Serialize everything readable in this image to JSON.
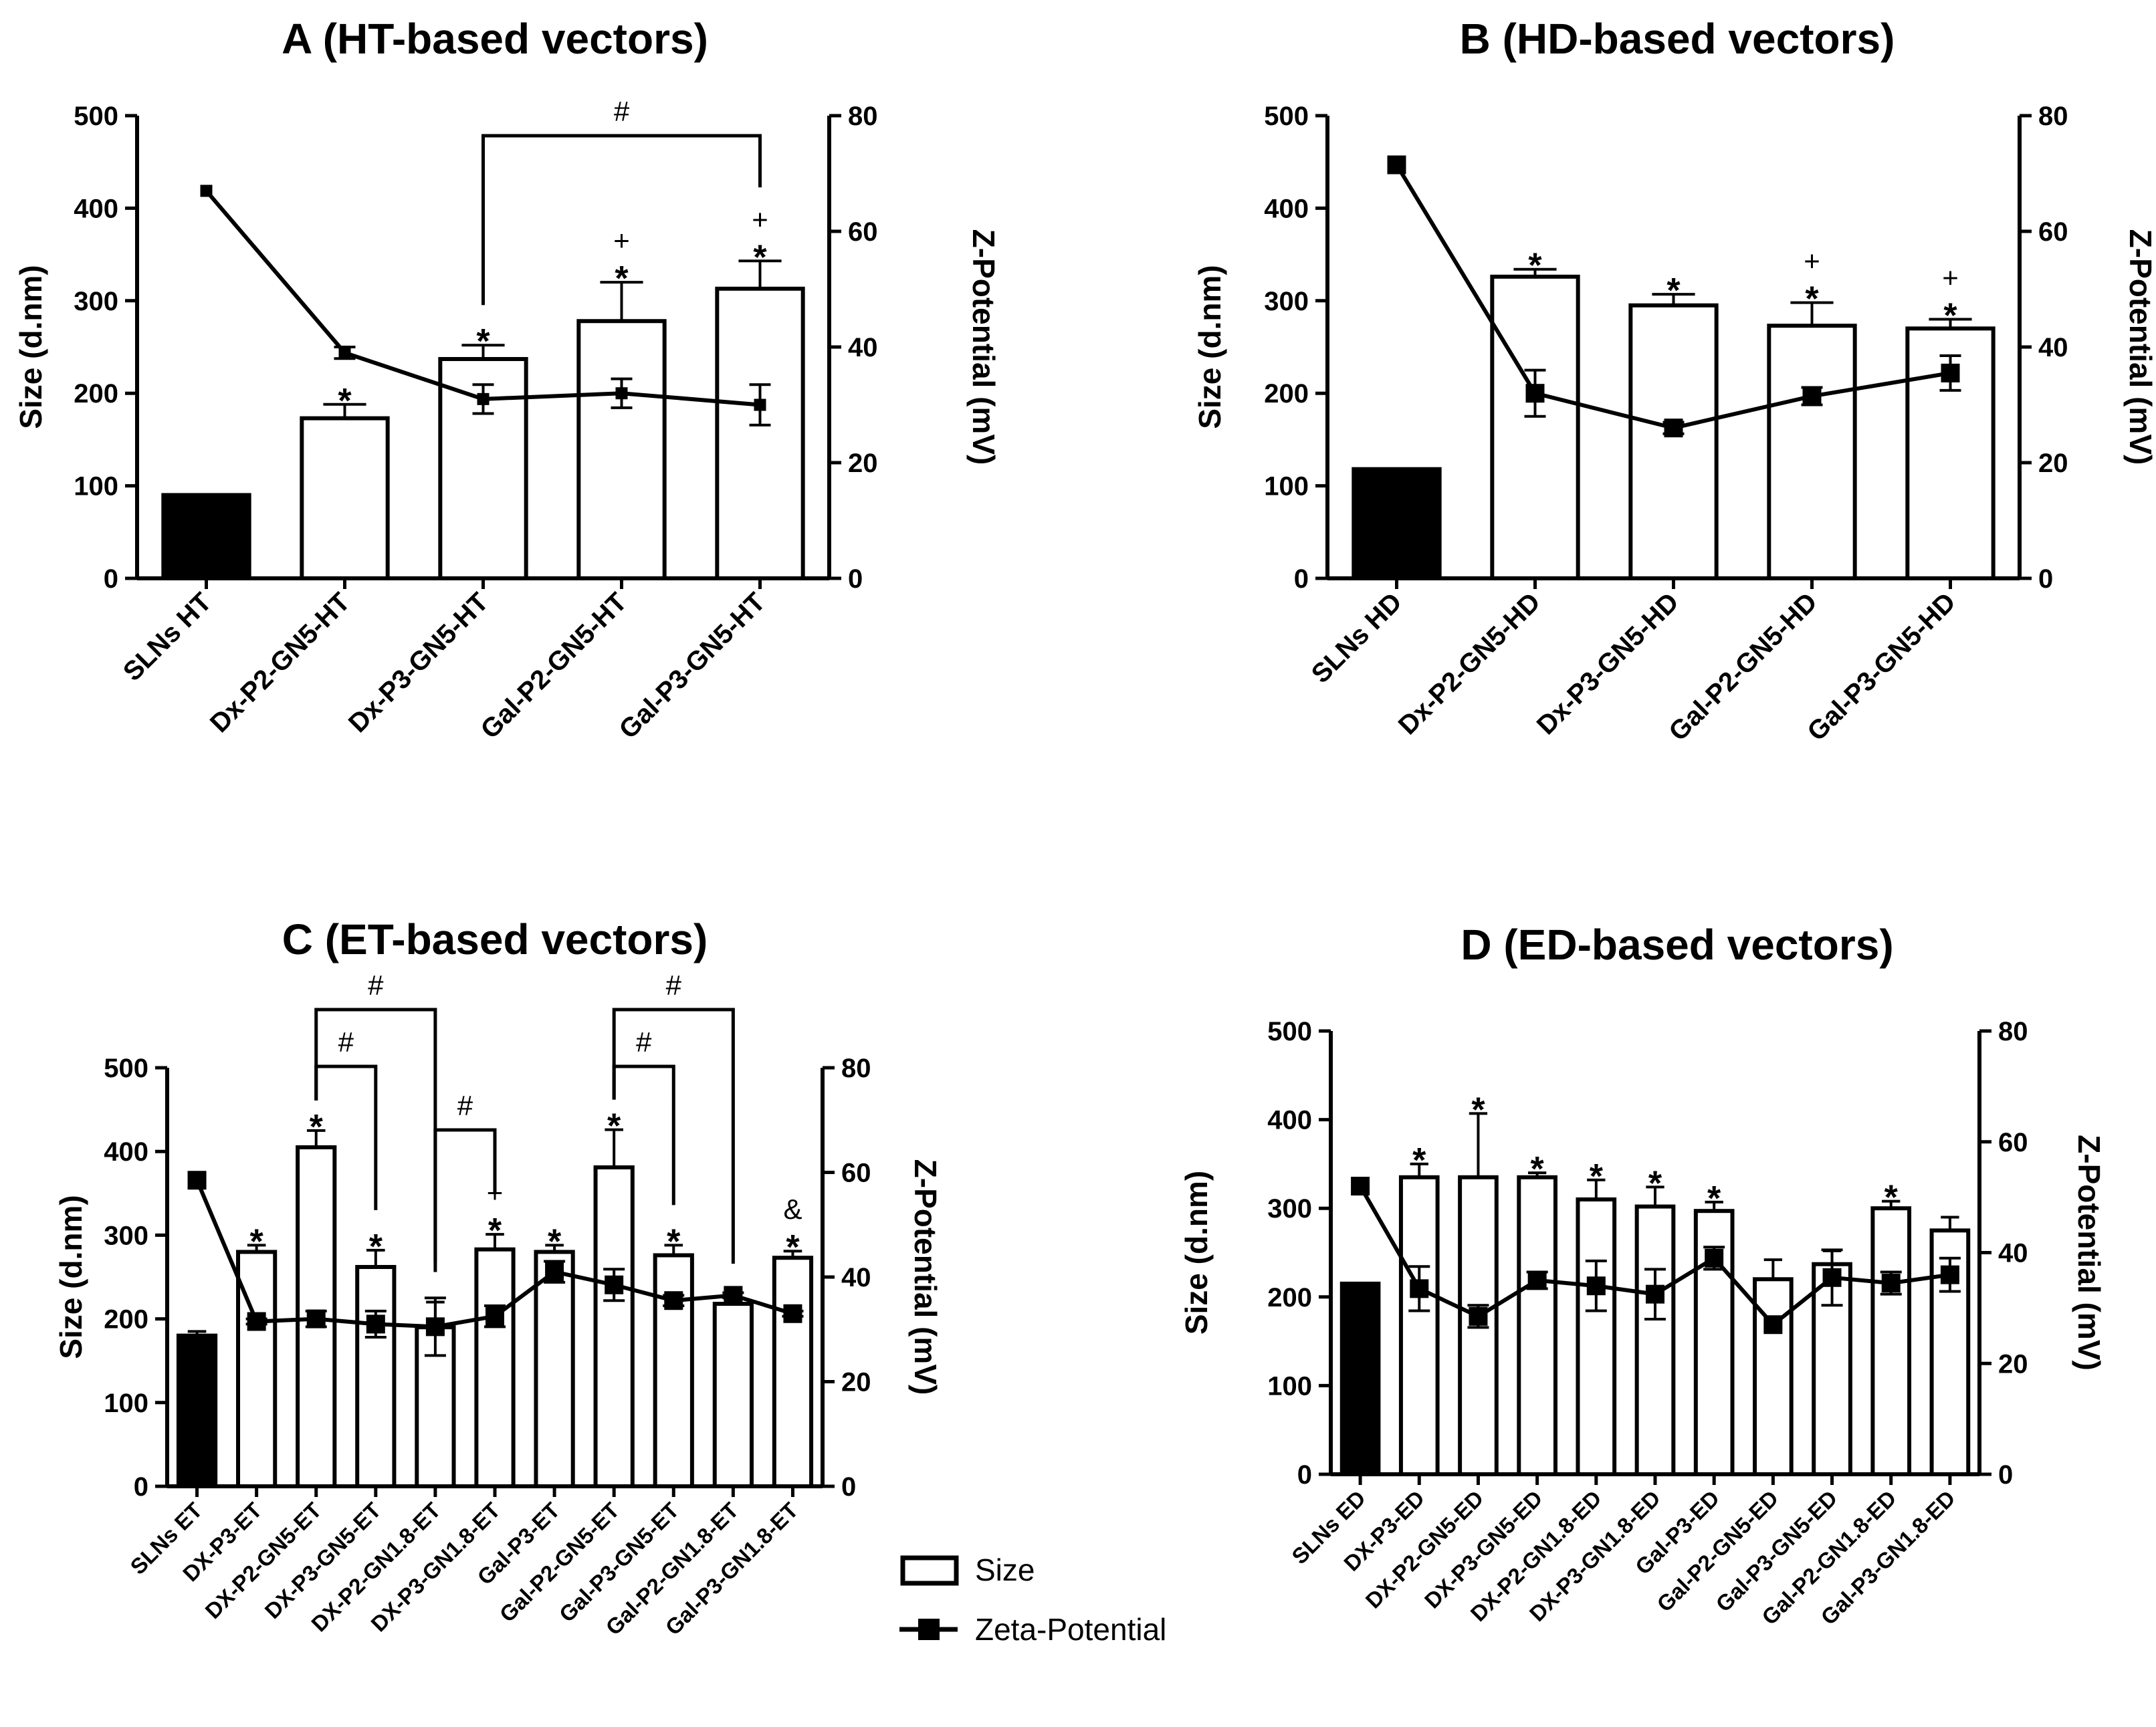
{
  "legend": {
    "size_label": "Size",
    "zeta_label": "Zeta-Potential"
  },
  "chart_data": [
    {
      "panel": "A",
      "type": "bar",
      "title": "A (HT-based vectors)",
      "ylabel": "Size (d.nm)",
      "y2label": "Z-Potential (mV)",
      "ylim": [
        0,
        500
      ],
      "y2lim": [
        0,
        80
      ],
      "yticks": [
        "0",
        "100",
        "200",
        "300",
        "400",
        "500"
      ],
      "y2ticks": [
        "0",
        "20",
        "40",
        "60",
        "80"
      ],
      "categories": [
        "SLNs HT",
        "Dx-P2-GN5-HT",
        "Dx-P3-GN5-HT",
        "Gal-P2-GN5-HT",
        "Gal-P3-GN5-HT"
      ],
      "series": [
        {
          "name": "Size",
          "values": [
            90,
            173,
            237,
            278,
            313
          ],
          "errors": [
            0,
            15,
            15,
            42,
            30
          ],
          "fills": [
            "#000000",
            "#ffffff",
            "#ffffff",
            "#ffffff",
            "#ffffff"
          ]
        },
        {
          "name": "Zeta-Potential",
          "axis": "right",
          "values": [
            67,
            39,
            31,
            32,
            30
          ],
          "errors": [
            0,
            1,
            2.5,
            2.5,
            3.5
          ],
          "markers": [
            "small",
            "small",
            "small",
            "small",
            "small"
          ]
        }
      ],
      "bar_labels": [
        [],
        [
          "*"
        ],
        [
          "*"
        ],
        [
          "*",
          "+"
        ],
        [
          "*",
          "+"
        ]
      ],
      "brackets": [
        {
          "from": 2,
          "to": 4,
          "label": "#"
        }
      ]
    },
    {
      "panel": "B",
      "type": "bar",
      "title": "B (HD-based vectors)",
      "ylabel": "Size (d.nm)",
      "y2label": "Z-Potential (mV)",
      "ylim": [
        0,
        500
      ],
      "y2lim": [
        0,
        80
      ],
      "yticks": [
        "0",
        "100",
        "200",
        "300",
        "400",
        "500"
      ],
      "y2ticks": [
        "0",
        "20",
        "40",
        "60",
        "80"
      ],
      "categories": [
        "SLNs HD",
        "Dx-P2-GN5-HD",
        "Dx-P3-GN5-HD",
        "Gal-P2-GN5-HD",
        "Gal-P3-GN5-HD"
      ],
      "series": [
        {
          "name": "Size",
          "values": [
            118,
            326,
            295,
            273,
            270
          ],
          "errors": [
            0,
            8,
            12,
            25,
            10
          ],
          "fills": [
            "#000000",
            "#ffffff",
            "#ffffff",
            "#ffffff",
            "#ffffff"
          ]
        },
        {
          "name": "Zeta-Potential",
          "axis": "right",
          "values": [
            71.5,
            32,
            26,
            31.5,
            35.5
          ],
          "errors": [
            0,
            4,
            1,
            1.5,
            3
          ],
          "markers": [
            "large",
            "large",
            "large",
            "large",
            "large"
          ]
        }
      ],
      "bar_labels": [
        [],
        [
          "*"
        ],
        [
          "*"
        ],
        [
          "*",
          "+"
        ],
        [
          "*",
          "+"
        ]
      ],
      "brackets": []
    },
    {
      "panel": "C",
      "type": "bar",
      "title": "C (ET-based vectors)",
      "ylabel": "Size (d.nm)",
      "y2label": "Z-Potential (mV)",
      "ylim": [
        0,
        500
      ],
      "y2lim": [
        0,
        80
      ],
      "yticks": [
        "0",
        "100",
        "200",
        "300",
        "400",
        "500"
      ],
      "y2ticks": [
        "0",
        "20",
        "40",
        "60",
        "80"
      ],
      "categories": [
        "SLNs ET",
        "DX-P3-ET",
        "DX-P2-GN5-ET",
        "DX-P3-GN5-ET",
        "DX-P2-GN1.8-ET",
        "DX-P3-GN1.8-ET",
        "Gal-P3-ET",
        "Gal-P2-GN5-ET",
        "Gal-P3-GN5-ET",
        "Gal-P2-GN1.8-ET",
        "Gal-P3-GN1.8-ET"
      ],
      "series": [
        {
          "name": "Size",
          "values": [
            180,
            280,
            405,
            262,
            190,
            283,
            280,
            381,
            276,
            218,
            273
          ],
          "errors": [
            5,
            8,
            20,
            20,
            30,
            18,
            8,
            45,
            12,
            0,
            8
          ],
          "fills": [
            "#000000",
            "#ffffff",
            "#ffffff",
            "#ffffff",
            "#ffffff",
            "#ffffff",
            "#ffffff",
            "#ffffff",
            "#ffffff",
            "#ffffff",
            "#ffffff"
          ]
        },
        {
          "name": "Zeta-Potential",
          "axis": "right",
          "values": [
            58.5,
            31.5,
            32,
            31,
            30.5,
            32.5,
            41,
            38.5,
            35.5,
            36.5,
            33
          ],
          "errors": [
            0,
            0.5,
            1.5,
            2.5,
            5.5,
            2,
            2,
            3,
            1,
            0.5,
            0.5
          ],
          "markers": [
            "large",
            "large",
            "large",
            "large",
            "large",
            "large",
            "large",
            "large",
            "large",
            "large",
            "large"
          ]
        }
      ],
      "bar_labels": [
        [],
        [
          "*"
        ],
        [
          "*"
        ],
        [
          "*"
        ],
        [],
        [
          "*",
          "+"
        ],
        [
          "*"
        ],
        [
          "*"
        ],
        [
          "*"
        ],
        [],
        [
          "*",
          "&"
        ]
      ],
      "brackets": [
        {
          "from": 2,
          "to": 4,
          "label": "#",
          "level": 2
        },
        {
          "from": 2,
          "to": 3,
          "label": "#",
          "level": 1
        },
        {
          "from": 4,
          "to": 5,
          "label": "#",
          "level": 0
        },
        {
          "from": 7,
          "to": 9,
          "label": "#",
          "level": 2
        },
        {
          "from": 7,
          "to": 8,
          "label": "#",
          "level": 1
        }
      ]
    },
    {
      "panel": "D",
      "type": "bar",
      "title": "D (ED-based vectors)",
      "ylabel": "Size (d.nm)",
      "y2label": "Z-Potential (mV)",
      "ylim": [
        0,
        500
      ],
      "y2lim": [
        0,
        80
      ],
      "yticks": [
        "0",
        "100",
        "200",
        "300",
        "400",
        "500"
      ],
      "y2ticks": [
        "0",
        "20",
        "40",
        "60",
        "80"
      ],
      "categories": [
        "SLNs ED",
        "DX-P3-ED",
        "DX-P2-GN5-ED",
        "DX-P3-GN5-ED",
        "DX-P2-GN1.8-ED",
        "DX-P3-GN1.8-ED",
        "Gal-P3-ED",
        "Gal-P2-GN5-ED",
        "Gal-P3-GN5-ED",
        "Gal-P2-GN1.8-ED",
        "Gal-P3-GN1.8-ED"
      ],
      "series": [
        {
          "name": "Size",
          "values": [
            215,
            335,
            335,
            335,
            310,
            302,
            297,
            220,
            237,
            300,
            275
          ],
          "errors": [
            0,
            15,
            72,
            5,
            22,
            22,
            10,
            22,
            15,
            8,
            15
          ],
          "fills": [
            "#000000",
            "#ffffff",
            "#ffffff",
            "#ffffff",
            "#ffffff",
            "#ffffff",
            "#ffffff",
            "#ffffff",
            "#ffffff",
            "#ffffff",
            "#ffffff"
          ]
        },
        {
          "name": "Zeta-Potential",
          "axis": "right",
          "values": [
            52,
            33.5,
            28.5,
            35,
            34,
            32.5,
            39,
            27,
            35.5,
            34.5,
            36
          ],
          "errors": [
            0,
            4,
            2,
            1.5,
            4.5,
            4.5,
            2,
            0,
            5,
            2,
            3
          ],
          "markers": [
            "large",
            "large",
            "large",
            "large",
            "large",
            "large",
            "large",
            "large",
            "large",
            "large",
            "large"
          ]
        }
      ],
      "bar_labels": [
        [],
        [
          "*"
        ],
        [
          "*"
        ],
        [
          "*"
        ],
        [
          "*"
        ],
        [
          "*"
        ],
        [
          "*"
        ],
        [],
        [],
        [
          "*"
        ],
        []
      ],
      "brackets": []
    }
  ]
}
